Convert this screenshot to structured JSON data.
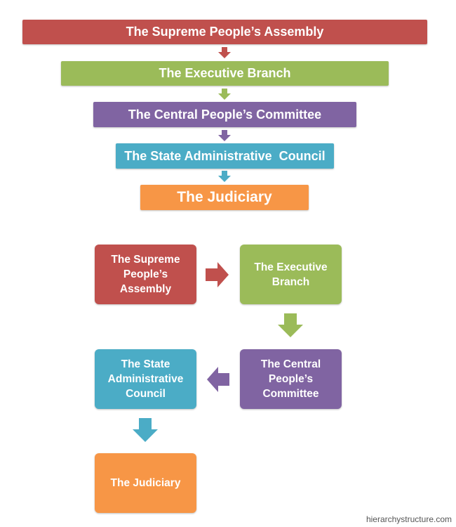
{
  "colors": {
    "assembly": "#C0504D",
    "executive": "#9BBB59",
    "committee": "#8064A2",
    "council": "#4BACC6",
    "judiciary": "#F79646"
  },
  "vertical_chart": {
    "levels": [
      {
        "label": "The Supreme People’s Assembly",
        "color_key": "assembly"
      },
      {
        "label": "The Executive Branch",
        "color_key": "executive"
      },
      {
        "label": "The Central People’s Committee",
        "color_key": "committee"
      },
      {
        "label": "The State Administrative  Council",
        "color_key": "council"
      },
      {
        "label": "The Judiciary",
        "color_key": "judiciary"
      }
    ]
  },
  "flow_chart": {
    "nodes": [
      {
        "label": "The Supreme People’s Assembly",
        "color_key": "assembly"
      },
      {
        "label": "The Executive Branch",
        "color_key": "executive"
      },
      {
        "label": "The Central People’s Committee",
        "color_key": "committee"
      },
      {
        "label": "The State Administrative Council",
        "color_key": "council"
      },
      {
        "label": "The Judiciary",
        "color_key": "judiciary"
      }
    ],
    "arrow_icons": [
      "arrow-right-icon",
      "arrow-down-icon",
      "arrow-left-icon",
      "arrow-down-icon"
    ]
  },
  "watermark": "hierarchystructure.com"
}
